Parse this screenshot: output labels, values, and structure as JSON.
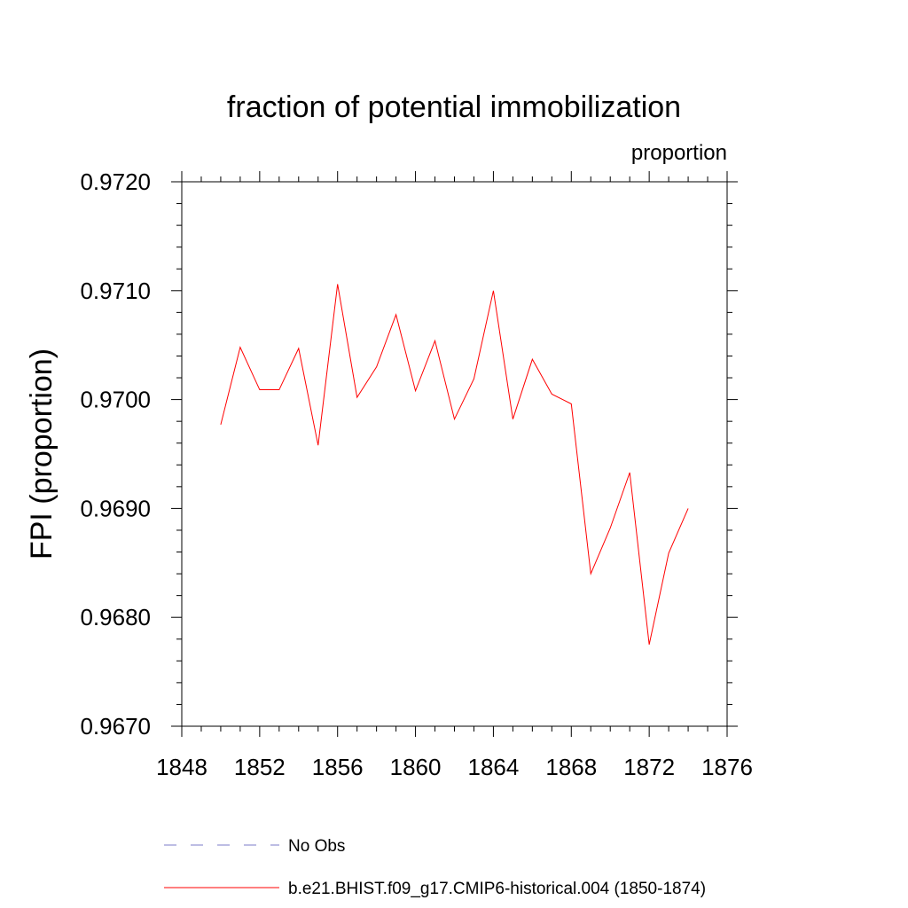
{
  "chart_data": {
    "type": "line",
    "title": "fraction of potential immobilization",
    "subtitle_right": "proportion",
    "ylabel": "FPI  (proportion)",
    "xlabel": "",
    "xlim": [
      1848,
      1876
    ],
    "ylim": [
      0.967,
      0.972
    ],
    "x_ticks": [
      1848,
      1852,
      1856,
      1860,
      1864,
      1868,
      1872,
      1876
    ],
    "x_tick_labels": [
      "1848",
      "1852",
      "1856",
      "1860",
      "1864",
      "1868",
      "1872",
      "1876"
    ],
    "x_minor_step": 1,
    "y_ticks": [
      0.967,
      0.968,
      0.969,
      0.97,
      0.971,
      0.972
    ],
    "y_tick_labels": [
      "0.9670",
      "0.9680",
      "0.9690",
      "0.9700",
      "0.9710",
      "0.9720"
    ],
    "y_minor_step": 0.0002,
    "grid": false,
    "legend_placement": "bottom",
    "series": [
      {
        "name": "b.e21.BHIST.f09_g17.CMIP6-historical.004 (1850-1874)",
        "color": "#ff0000",
        "style": "solid",
        "x": [
          1850,
          1851,
          1852,
          1853,
          1854,
          1855,
          1856,
          1857,
          1858,
          1859,
          1860,
          1861,
          1862,
          1863,
          1864,
          1865,
          1866,
          1867,
          1868,
          1869,
          1870,
          1871,
          1872,
          1873,
          1874
        ],
        "values": [
          0.96977,
          0.97048,
          0.97009,
          0.97009,
          0.97047,
          0.96958,
          0.97106,
          0.97002,
          0.9703,
          0.97078,
          0.97008,
          0.97054,
          0.96982,
          0.97019,
          0.971,
          0.96982,
          0.97037,
          0.97005,
          0.96996,
          0.9684,
          0.96882,
          0.96933,
          0.96775,
          0.96859,
          0.969
        ]
      }
    ],
    "legend": [
      {
        "label": "No Obs",
        "color": "#7b7bc8",
        "style": "dashed"
      },
      {
        "label": "b.e21.BHIST.f09_g17.CMIP6-historical.004 (1850-1874)",
        "color": "#ff0000",
        "style": "solid"
      }
    ]
  }
}
